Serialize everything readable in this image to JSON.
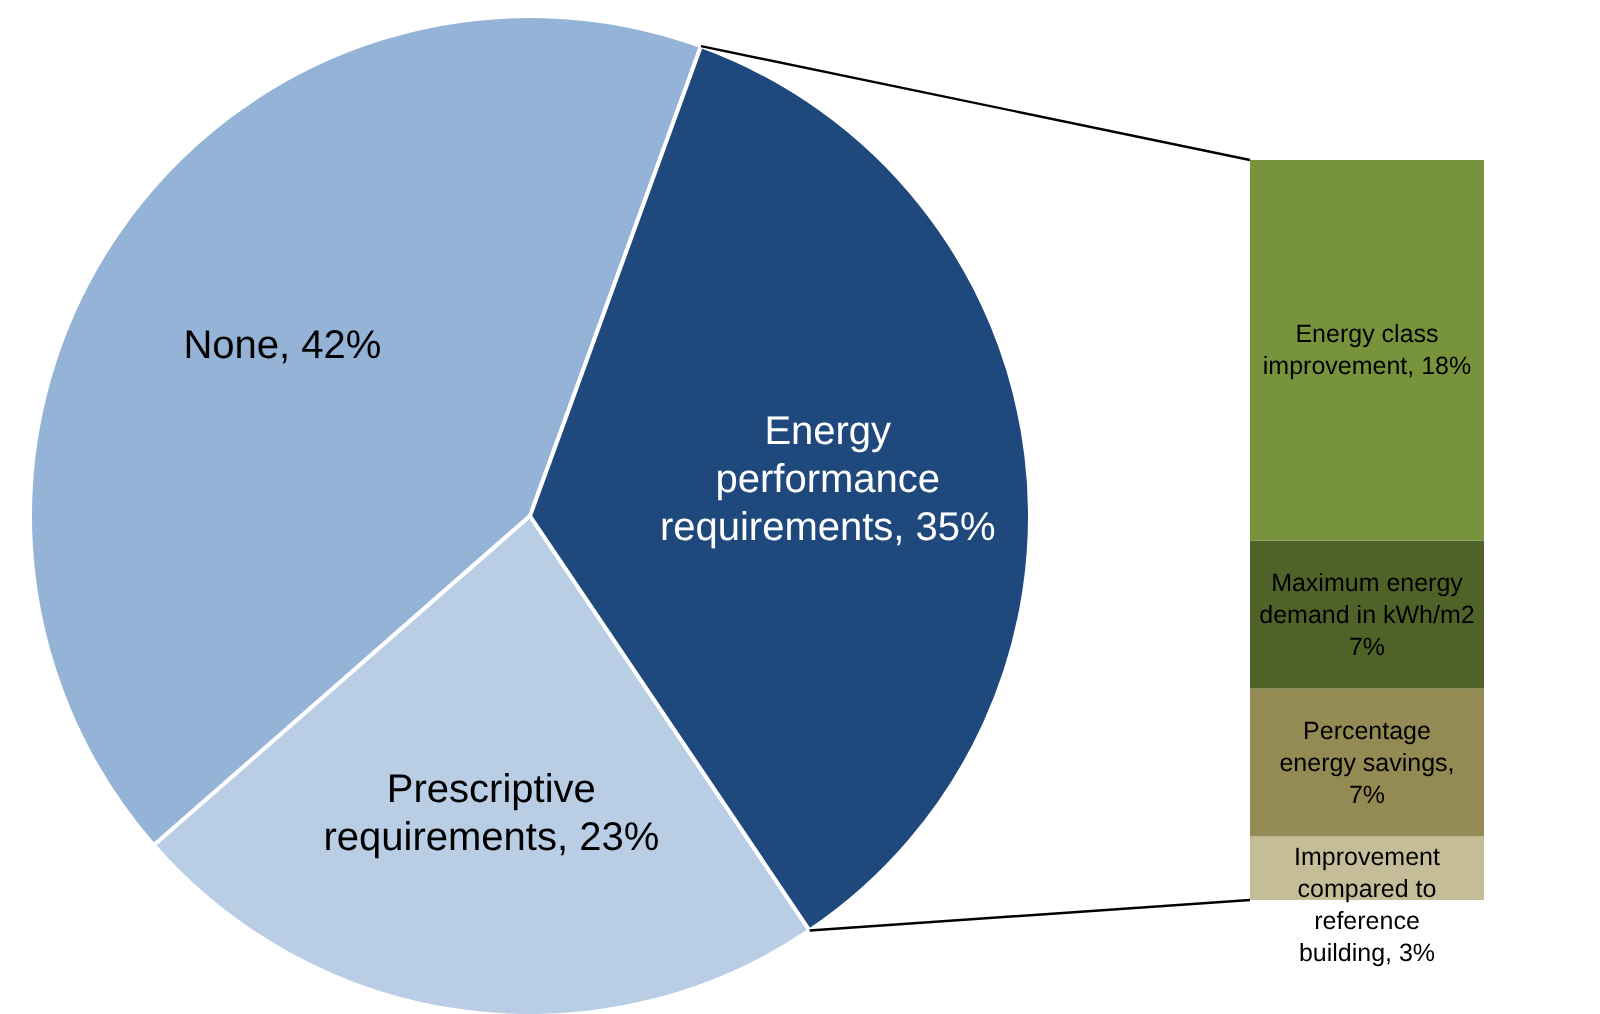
{
  "chart_data": [
    {
      "type": "pie",
      "categories": [
        "None",
        "Prescriptive requirements",
        "Energy performance requirements"
      ],
      "values": [
        42,
        23,
        35
      ],
      "value_labels": [
        "42%",
        "23%",
        "35%"
      ],
      "colors": [
        "#95b3d7",
        "#b9cde5",
        "#1f497d"
      ],
      "legend": false
    },
    {
      "type": "bar",
      "stacked": true,
      "categories": [
        null
      ],
      "legend": false,
      "series": [
        {
          "color": "#c4bd97",
          "values": [
            3
          ],
          "value_labels": [
            "Improvement compared to reference building, 3%"
          ]
        },
        {
          "color": "#948a54",
          "values": [
            7
          ],
          "value_labels": [
            "Percentage energy savings, 7%"
          ]
        },
        {
          "color": "#4f6228",
          "values": [
            7
          ],
          "value_labels": [
            "Maximum energy demand in kWh/m2 7%"
          ]
        },
        {
          "color": "#77933c",
          "values": [
            18
          ],
          "value_labels": [
            "Energy class improvement, 18%"
          ]
        }
      ]
    }
  ]
}
